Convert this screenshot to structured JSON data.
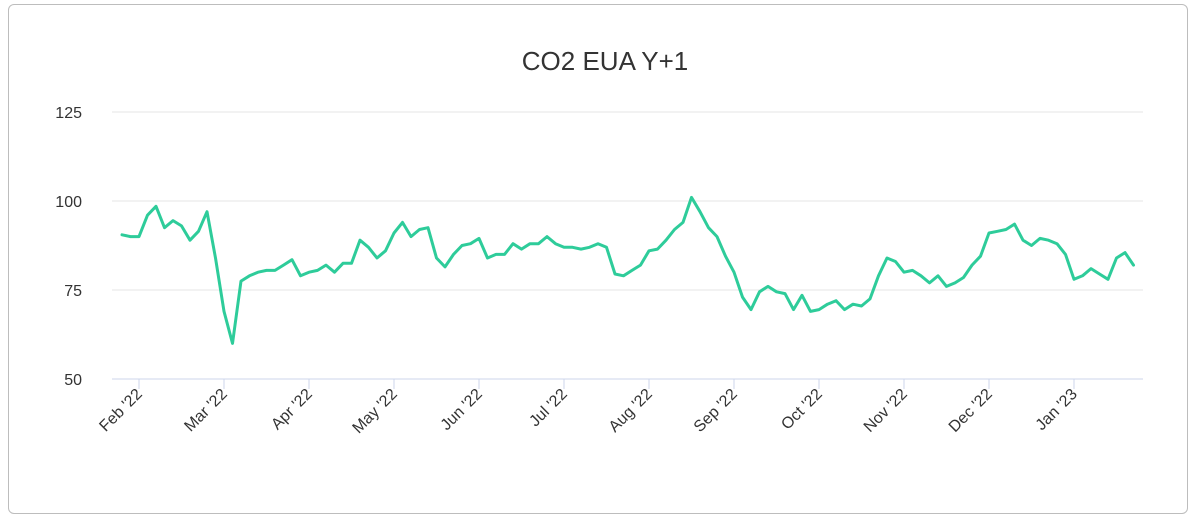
{
  "chart_data": {
    "type": "line",
    "title": "CO2 EUA Y+1",
    "color": "#2ecc9a",
    "grid": true,
    "ylim": [
      50,
      125
    ],
    "yticks": [
      50,
      75,
      100,
      125
    ],
    "categories": [
      null,
      null,
      "Feb '22",
      null,
      null,
      null,
      null,
      null,
      null,
      null,
      null,
      null,
      "Mar '22",
      null,
      null,
      null,
      null,
      null,
      null,
      null,
      null,
      null,
      "Apr '22",
      null,
      null,
      null,
      null,
      null,
      null,
      null,
      null,
      null,
      "May '22",
      null,
      null,
      null,
      null,
      null,
      null,
      null,
      null,
      null,
      "Jun '22",
      null,
      null,
      null,
      null,
      null,
      null,
      null,
      null,
      null,
      "Jul '22",
      null,
      null,
      null,
      null,
      null,
      null,
      null,
      null,
      null,
      "Aug '22",
      null,
      null,
      null,
      null,
      null,
      null,
      null,
      null,
      null,
      "Sep '22",
      null,
      null,
      null,
      null,
      null,
      null,
      null,
      null,
      null,
      "Oct '22",
      null,
      null,
      null,
      null,
      null,
      null,
      null,
      null,
      null,
      "Nov '22",
      null,
      null,
      null,
      null,
      null,
      null,
      null,
      null,
      null,
      "Dec '22",
      null,
      null,
      null,
      null,
      null,
      null,
      null,
      null,
      null,
      "Jan '23",
      null,
      null,
      null,
      null,
      null,
      null,
      null
    ],
    "values": [
      90.5,
      90,
      90,
      96,
      98.5,
      92.5,
      94.5,
      93,
      89,
      91.5,
      97,
      84,
      69,
      60,
      77.5,
      79,
      80,
      80.5,
      80.5,
      82,
      83.5,
      79,
      80,
      80.5,
      82,
      80,
      82.5,
      82.5,
      89,
      87,
      84,
      86,
      91,
      94,
      90,
      92,
      92.5,
      84,
      81.5,
      85,
      87.5,
      88,
      89.5,
      84,
      85,
      85,
      88,
      86.5,
      88,
      88,
      90,
      88,
      87,
      87,
      86.5,
      87,
      88,
      87,
      79.5,
      79,
      80.5,
      82,
      86,
      86.5,
      89,
      92,
      94,
      101,
      97,
      92.5,
      90,
      84.5,
      80,
      73,
      69.5,
      74.5,
      76,
      74.5,
      74,
      69.5,
      73.5,
      69,
      69.5,
      71,
      72,
      69.5,
      71,
      70.5,
      72.5,
      79,
      84,
      83,
      80,
      80.5,
      79,
      77,
      79,
      76,
      77,
      78.5,
      82,
      84.5,
      91,
      91.5,
      92,
      93.5,
      89,
      87.5,
      89.5,
      89,
      88,
      85,
      78,
      79,
      81,
      79.5,
      78,
      84,
      85.5,
      82
    ]
  }
}
